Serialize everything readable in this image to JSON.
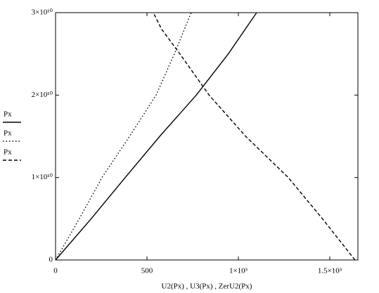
{
  "chart_data": {
    "type": "line",
    "x_label": "U2(Px) , U3(Px) , ZerU2(Px)",
    "series": [
      {
        "name": "Px",
        "color": "#000000",
        "dash": "solid",
        "x": [
          0,
          195,
          381,
          570,
          770,
          945,
          1100
        ],
        "values": [
          0,
          5000000000,
          10000000000,
          15000000000,
          20000000000,
          25000000000,
          30000000000
        ]
      },
      {
        "name": "Px",
        "color": "#000000",
        "dash": "dotted",
        "x": [
          0,
          130,
          254,
          405,
          550,
          650,
          742
        ],
        "values": [
          0,
          5000000000,
          10000000000,
          15000000000,
          20000000000,
          25000000000,
          30000000000
        ]
      },
      {
        "name": "Px",
        "color": "#000000",
        "dash": "dashed",
        "x": [
          1638,
          1460,
          1273,
          1040,
          840,
          680,
          580,
          535
        ],
        "values": [
          0,
          5000000000,
          10000000000,
          15000000000,
          20000000000,
          25000000000,
          28000000000,
          30000000000
        ]
      }
    ],
    "xlim": [
      0,
      1654
    ],
    "ylim": [
      0,
      30000000000
    ],
    "xticks": [
      0,
      500,
      {
        "value": 1000,
        "label": "1×10³"
      },
      {
        "value": 1500,
        "label": "1.5×10³"
      }
    ],
    "yticks": [
      0,
      {
        "value": 10000000000,
        "label": "1×10¹⁰"
      },
      {
        "value": 20000000000,
        "label": "2×10¹⁰"
      },
      {
        "value": 30000000000,
        "label": "3×10¹⁰"
      }
    ],
    "grid": false
  }
}
